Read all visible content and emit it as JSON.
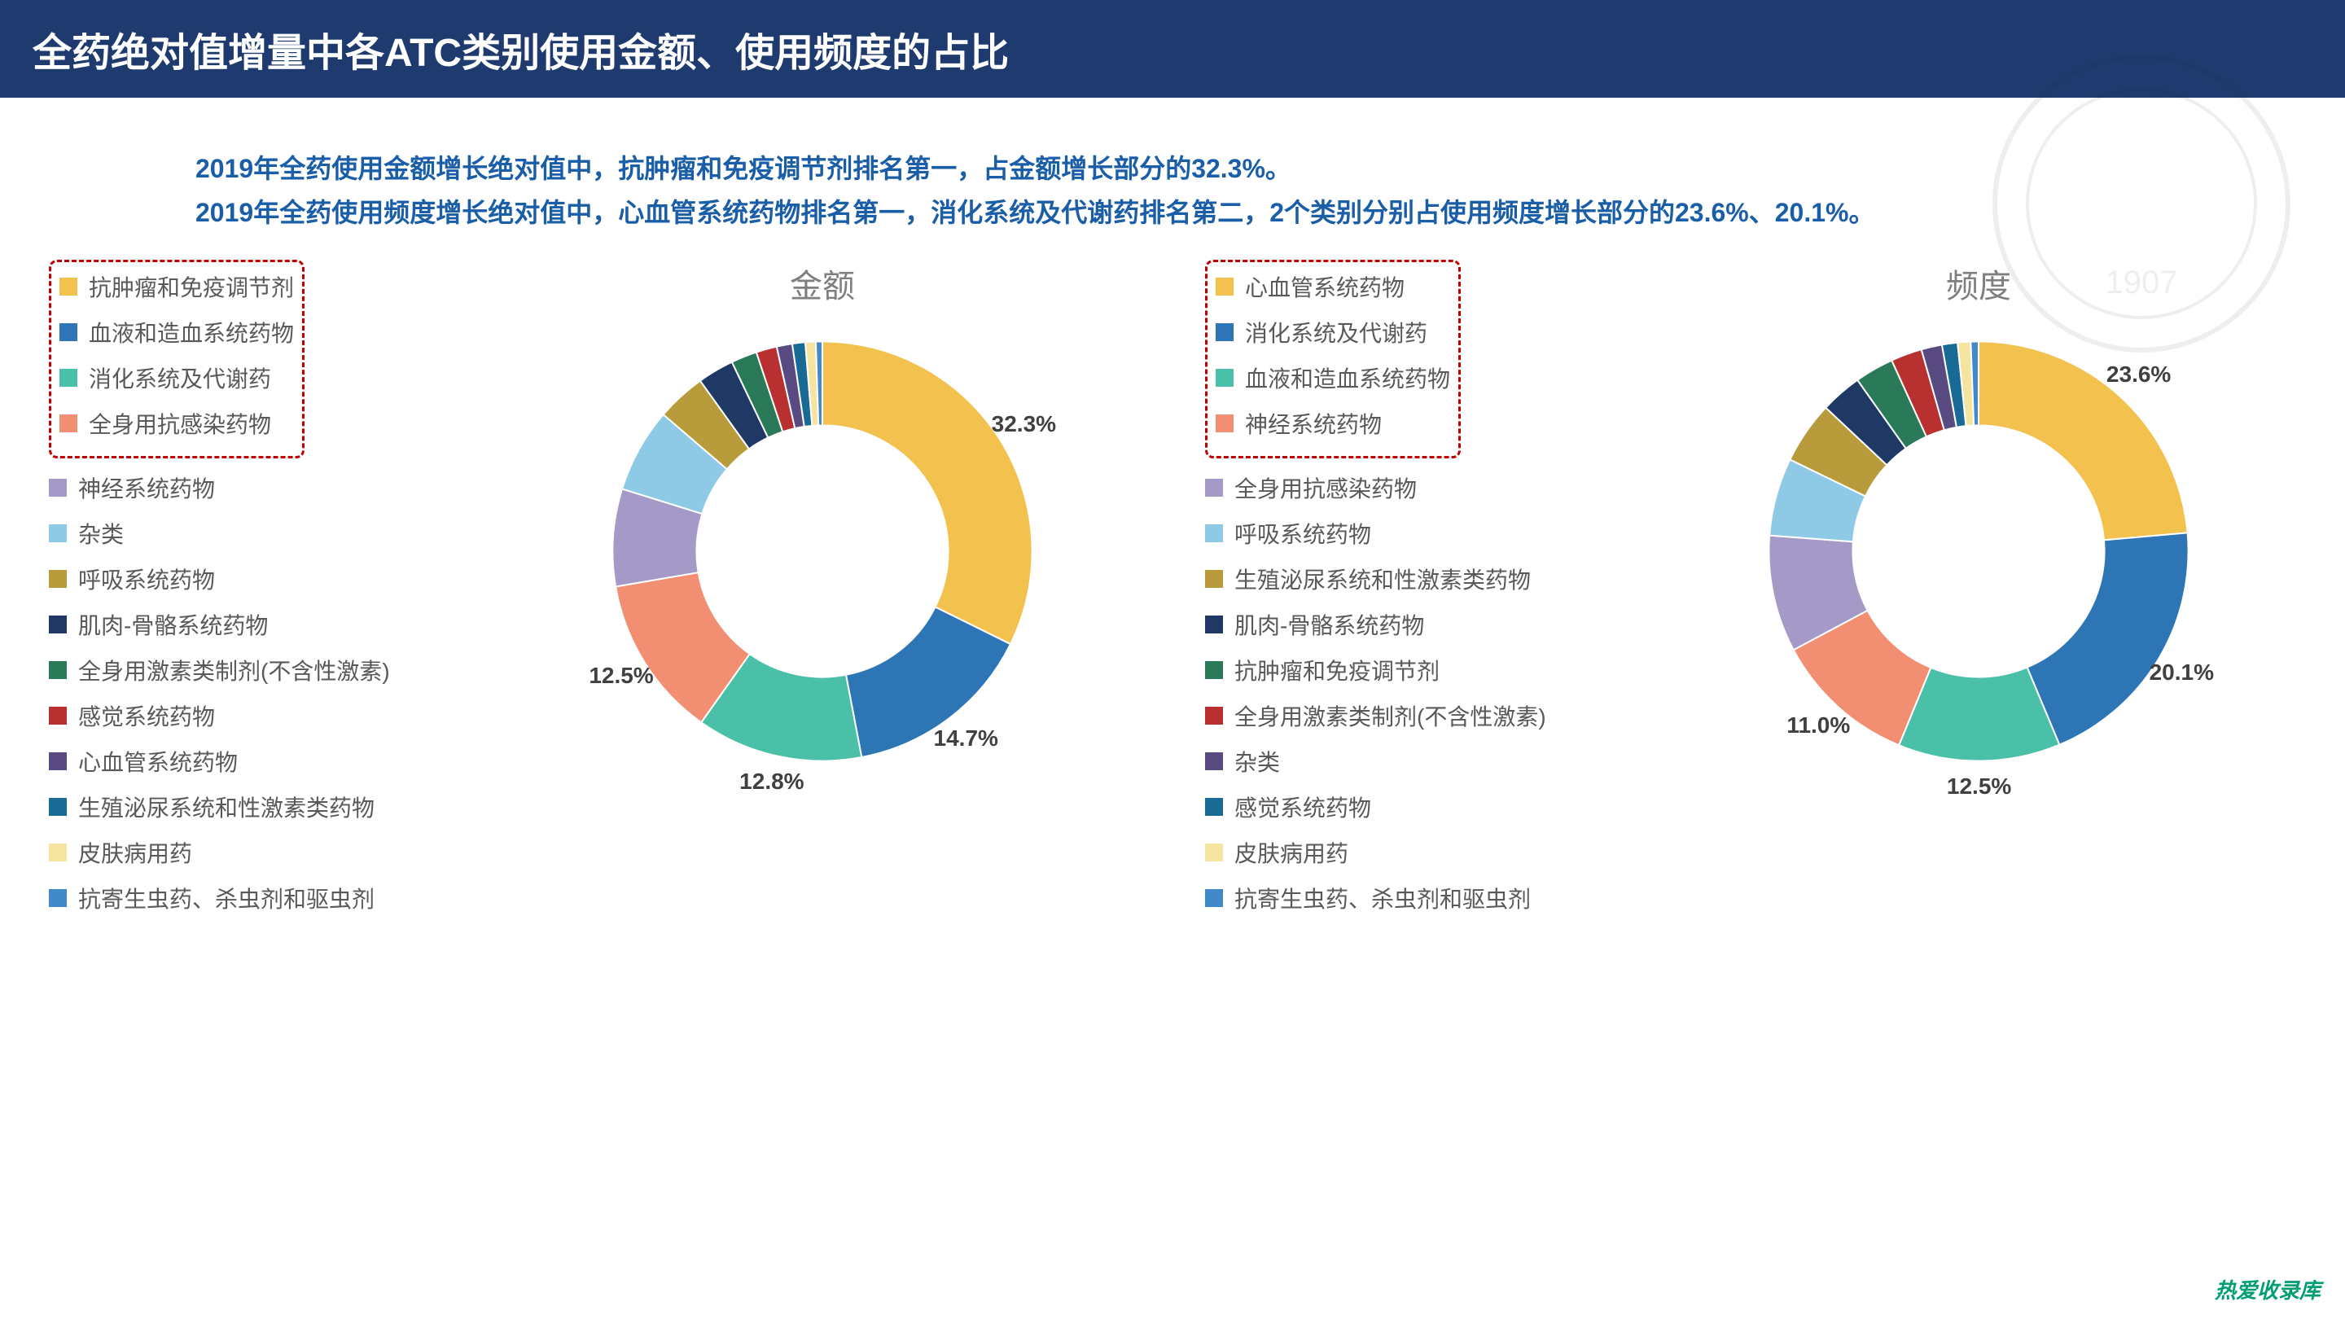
{
  "title": "全药绝对值增量中各ATC类别使用金额、使用频度的占比",
  "desc_line1": "2019年全药使用金额增长绝对值中，抗肿瘤和免疫调节剂排名第一，占金额增长部分的32.3%。",
  "desc_line2": "2019年全药使用频度增长绝对值中，心血管系统药物排名第一，消化系统及代谢药排名第二，2个类别分别占使用频度增长部分的23.6%、20.1%。",
  "footer": "热爱收录库",
  "watermark_year": "1907",
  "chart_left": {
    "title": "金额",
    "type": "donut",
    "inner_radius": 0.6,
    "outer_radius": 1.0,
    "background": "#ffffff",
    "label_fontsize": 28,
    "legend_fontsize": 28,
    "title_fontsize": 40,
    "title_color": "#7f7f7f",
    "highlight_top_n": 4,
    "highlight_border_color": "#c00000",
    "slices": [
      {
        "label": "抗肿瘤和免疫调节剂",
        "value": 32.3,
        "color": "#f2c14e",
        "show_pct": true
      },
      {
        "label": "血液和造血系统药物",
        "value": 14.7,
        "color": "#2e75b6",
        "show_pct": true
      },
      {
        "label": "消化系统及代谢药",
        "value": 12.8,
        "color": "#4bc0a8",
        "show_pct": true
      },
      {
        "label": "全身用抗感染药物",
        "value": 12.5,
        "color": "#f28e72",
        "show_pct": true
      },
      {
        "label": "神经系统药物",
        "value": 7.5,
        "color": "#a499c7",
        "show_pct": false
      },
      {
        "label": "杂类",
        "value": 6.5,
        "color": "#8ecae6",
        "show_pct": false
      },
      {
        "label": "呼吸系统药物",
        "value": 3.8,
        "color": "#b89b3a",
        "show_pct": false
      },
      {
        "label": "肌肉-骨骼系统药物",
        "value": 2.8,
        "color": "#1f3864",
        "show_pct": false
      },
      {
        "label": "全身用激素类制剂(不含性激素)",
        "value": 2.0,
        "color": "#2a7a5a",
        "show_pct": false
      },
      {
        "label": "感觉系统药物",
        "value": 1.6,
        "color": "#b83030",
        "show_pct": false
      },
      {
        "label": "心血管系统药物",
        "value": 1.2,
        "color": "#5a4a82",
        "show_pct": false
      },
      {
        "label": "生殖泌尿系统和性激素类药物",
        "value": 1.0,
        "color": "#1a6a96",
        "show_pct": false
      },
      {
        "label": "皮肤病用药",
        "value": 0.8,
        "color": "#f5e4a0",
        "show_pct": false
      },
      {
        "label": "抗寄生虫药、杀虫剂和驱虫剂",
        "value": 0.5,
        "color": "#418ac9",
        "show_pct": false
      }
    ]
  },
  "chart_right": {
    "title": "频度",
    "type": "donut",
    "inner_radius": 0.6,
    "outer_radius": 1.0,
    "background": "#ffffff",
    "label_fontsize": 28,
    "legend_fontsize": 28,
    "title_fontsize": 40,
    "title_color": "#7f7f7f",
    "highlight_top_n": 4,
    "highlight_border_color": "#c00000",
    "slices": [
      {
        "label": "心血管系统药物",
        "value": 23.6,
        "color": "#f2c14e",
        "show_pct": true
      },
      {
        "label": "消化系统及代谢药",
        "value": 20.1,
        "color": "#2e75b6",
        "show_pct": true
      },
      {
        "label": "血液和造血系统药物",
        "value": 12.5,
        "color": "#4bc0a8",
        "show_pct": true
      },
      {
        "label": "神经系统药物",
        "value": 11.0,
        "color": "#f28e72",
        "show_pct": true
      },
      {
        "label": "全身用抗感染药物",
        "value": 9.0,
        "color": "#a499c7",
        "show_pct": false
      },
      {
        "label": "呼吸系统药物",
        "value": 6.0,
        "color": "#8ecae6",
        "show_pct": false
      },
      {
        "label": "生殖泌尿系统和性激素类药物",
        "value": 4.8,
        "color": "#b89b3a",
        "show_pct": false
      },
      {
        "label": "肌肉-骨骼系统药物",
        "value": 3.2,
        "color": "#1f3864",
        "show_pct": false
      },
      {
        "label": "抗肿瘤和免疫调节剂",
        "value": 3.0,
        "color": "#2a7a5a",
        "show_pct": false
      },
      {
        "label": "全身用激素类制剂(不含性激素)",
        "value": 2.4,
        "color": "#b83030",
        "show_pct": false
      },
      {
        "label": "杂类",
        "value": 1.6,
        "color": "#5a4a82",
        "show_pct": false
      },
      {
        "label": "感觉系统药物",
        "value": 1.2,
        "color": "#1a6a96",
        "show_pct": false
      },
      {
        "label": "皮肤病用药",
        "value": 1.0,
        "color": "#f5e4a0",
        "show_pct": false
      },
      {
        "label": "抗寄生虫药、杀虫剂和驱虫剂",
        "value": 0.6,
        "color": "#418ac9",
        "show_pct": false
      }
    ]
  }
}
